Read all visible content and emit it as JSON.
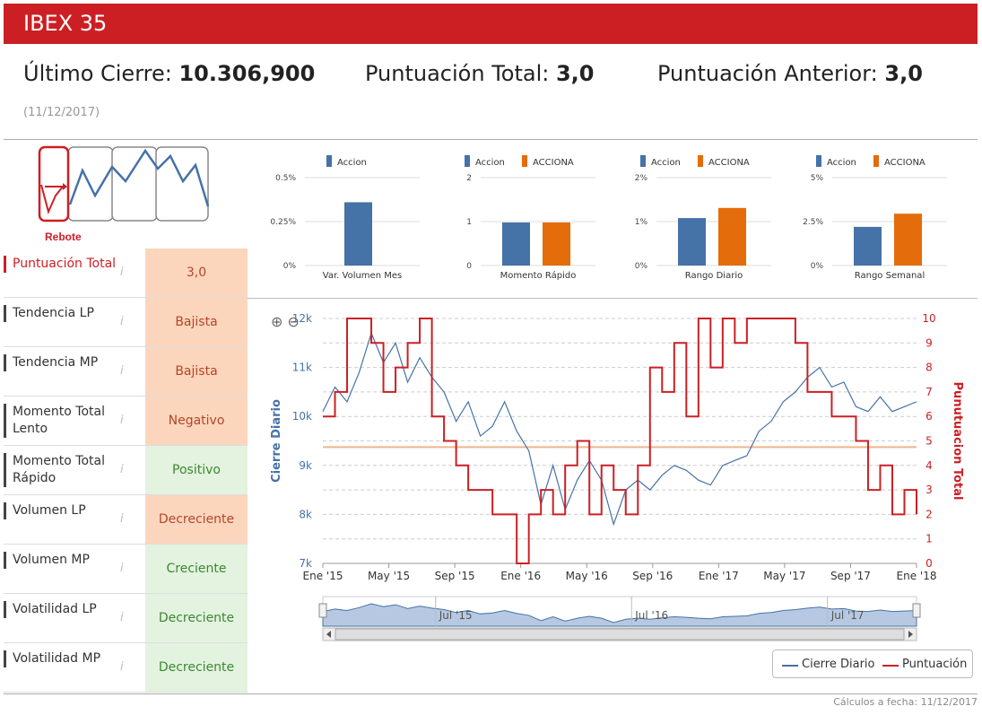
{
  "header": {
    "title": "IBEX 35"
  },
  "summary": {
    "last_close_label": "Último Cierre:",
    "last_close_value": "10.306,900",
    "total_score_label": "Puntuación Total:",
    "total_score_value": "3,0",
    "prev_score_label": "Puntuación Anterior:",
    "prev_score_value": "3,0",
    "date": "(11/12/2017)"
  },
  "logo": {
    "label": "Rebote"
  },
  "rows": [
    {
      "label": "Puntuación Total",
      "value": "3,0",
      "kind": "neutral"
    },
    {
      "label": "Tendencia LP",
      "value": "Bajista",
      "kind": "neg"
    },
    {
      "label": "Tendencia MP",
      "value": "Bajista",
      "kind": "neg"
    },
    {
      "label": "Momento Total Lento",
      "value": "Negativo",
      "kind": "neg"
    },
    {
      "label": "Momento Total Rápido",
      "value": "Positivo",
      "kind": "pos"
    },
    {
      "label": "Volumen LP",
      "value": "Decreciente",
      "kind": "neg"
    },
    {
      "label": "Volumen MP",
      "value": "Creciente",
      "kind": "pos"
    },
    {
      "label": "Volatilidad LP",
      "value": "Decreciente",
      "kind": "pos"
    },
    {
      "label": "Volatilidad MP",
      "value": "Decreciente",
      "kind": "pos"
    }
  ],
  "info_icon": "i",
  "colors": {
    "accent": "#cc1f24",
    "blue": "#4572a7",
    "orange": "#e46c0a",
    "neg_bg": "#fbd6bc",
    "pos_bg": "#e4f2e0"
  },
  "chart_data": [
    {
      "type": "bar",
      "title": "Var. Volumen Mes",
      "legend": [
        "Accion"
      ],
      "ticks": [
        "0.5%",
        "0.25%",
        "0%"
      ],
      "ylim": [
        0,
        0.5
      ],
      "values": [
        0.36
      ]
    },
    {
      "type": "bar",
      "title": "Momento Rápido",
      "legend": [
        "Accion",
        "ACCIONA"
      ],
      "ticks": [
        "2",
        "1",
        "0"
      ],
      "ylim": [
        0,
        2
      ],
      "values": [
        0.98,
        0.98
      ]
    },
    {
      "type": "bar",
      "title": "Rango Diario",
      "legend": [
        "Accion",
        "ACCIONA"
      ],
      "ticks": [
        "2%",
        "1%",
        "0%"
      ],
      "ylim": [
        0,
        2
      ],
      "values": [
        1.08,
        1.31
      ]
    },
    {
      "type": "bar",
      "title": "Rango Semanal",
      "legend": [
        "Accion",
        "ACCIONA"
      ],
      "ticks": [
        "5%",
        "2.5%",
        "0%"
      ],
      "ylim": [
        0,
        5
      ],
      "values": [
        2.2,
        2.95
      ]
    },
    {
      "type": "line",
      "ylabel_left": "Cierre Diario",
      "ylabel_right": "Punutuacion Total",
      "left_ticks": [
        "12k",
        "11k",
        "10k",
        "9k",
        "8k",
        "7k"
      ],
      "right_ticks": [
        "10",
        "9",
        "8",
        "7",
        "6",
        "5",
        "4",
        "3",
        "2",
        "1",
        "0"
      ],
      "xticks": [
        "Ene '15",
        "May '15",
        "Sep '15",
        "Ene '16",
        "May '16",
        "Sep '16",
        "Ene '17",
        "May '17",
        "Sep '17",
        "Ene '18"
      ],
      "nav_ticks": [
        "Jul '15",
        "Jul '16",
        "Jul '17"
      ],
      "ylim_left": [
        7000,
        12000
      ],
      "ylim_right": [
        0,
        10
      ],
      "threshold": 4.75,
      "series": [
        {
          "name": "Cierre Diario",
          "values": [
            10100,
            10600,
            10300,
            10900,
            11700,
            11100,
            11500,
            10700,
            11200,
            10800,
            10500,
            9900,
            10300,
            9600,
            9800,
            10300,
            9700,
            9300,
            8200,
            9000,
            8100,
            8700,
            9100,
            8700,
            7800,
            8500,
            8700,
            8500,
            8800,
            9000,
            8900,
            8700,
            8600,
            9000,
            9100,
            9200,
            9700,
            9900,
            10300,
            10500,
            10800,
            11000,
            10600,
            10700,
            10200,
            10100,
            10400,
            10100,
            10200,
            10300
          ]
        },
        {
          "name": "Puntuación",
          "values": [
            6,
            7,
            10,
            10,
            9,
            7,
            8,
            9,
            10,
            6,
            5,
            4,
            3,
            3,
            2,
            2,
            0,
            2,
            3,
            2,
            4,
            5,
            2,
            4,
            3,
            2,
            4,
            8,
            7,
            9,
            6,
            10,
            8,
            10,
            9,
            10,
            10,
            10,
            10,
            9,
            7,
            7,
            6,
            6,
            5,
            3,
            4,
            2,
            3,
            2
          ]
        }
      ]
    }
  ],
  "legend": {
    "series1": "Cierre Diario",
    "series2": "Puntuación"
  },
  "footer": "Cálculos a fecha: 11/12/2017"
}
